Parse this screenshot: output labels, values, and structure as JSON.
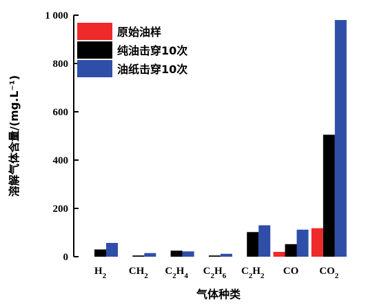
{
  "chart_data": {
    "type": "bar",
    "categories": [
      "H2",
      "CH2",
      "C2H4",
      "C2H6",
      "C2H2",
      "CO",
      "CO2"
    ],
    "category_labels": [
      {
        "base": "H",
        "sub": "2",
        "tail": ""
      },
      {
        "base": "CH",
        "sub": "2",
        "tail": ""
      },
      {
        "base": "C",
        "sub": "2",
        "tail": "H",
        "sub2": "4"
      },
      {
        "base": "C",
        "sub": "2",
        "tail": "H",
        "sub2": "6"
      },
      {
        "base": "C",
        "sub": "2",
        "tail": "H",
        "sub2": "2"
      },
      {
        "base": "CO",
        "sub": "",
        "tail": ""
      },
      {
        "base": "CO",
        "sub": "2",
        "tail": ""
      }
    ],
    "series": [
      {
        "name": "原始油样",
        "color": "#ee2a2a",
        "values": [
          0,
          0,
          0,
          0,
          0,
          20,
          118
        ]
      },
      {
        "name": "纯油击穿10次",
        "color": "#000000",
        "values": [
          30,
          5,
          25,
          5,
          102,
          52,
          505
        ]
      },
      {
        "name": "油纸击穿10次",
        "color": "#2f4ea8",
        "values": [
          57,
          15,
          22,
          12,
          130,
          112,
          980
        ]
      }
    ],
    "xlabel": "气体种类",
    "ylabel": "溶解气体含量/(mg.L⁻¹)",
    "ylim": [
      0,
      1000
    ],
    "yticks": [
      0,
      200,
      400,
      600,
      800,
      1000
    ],
    "ytick_labels": [
      "0",
      "200",
      "400",
      "600",
      "800",
      "1 000"
    ],
    "grid": false,
    "legend_position": "top-left"
  }
}
